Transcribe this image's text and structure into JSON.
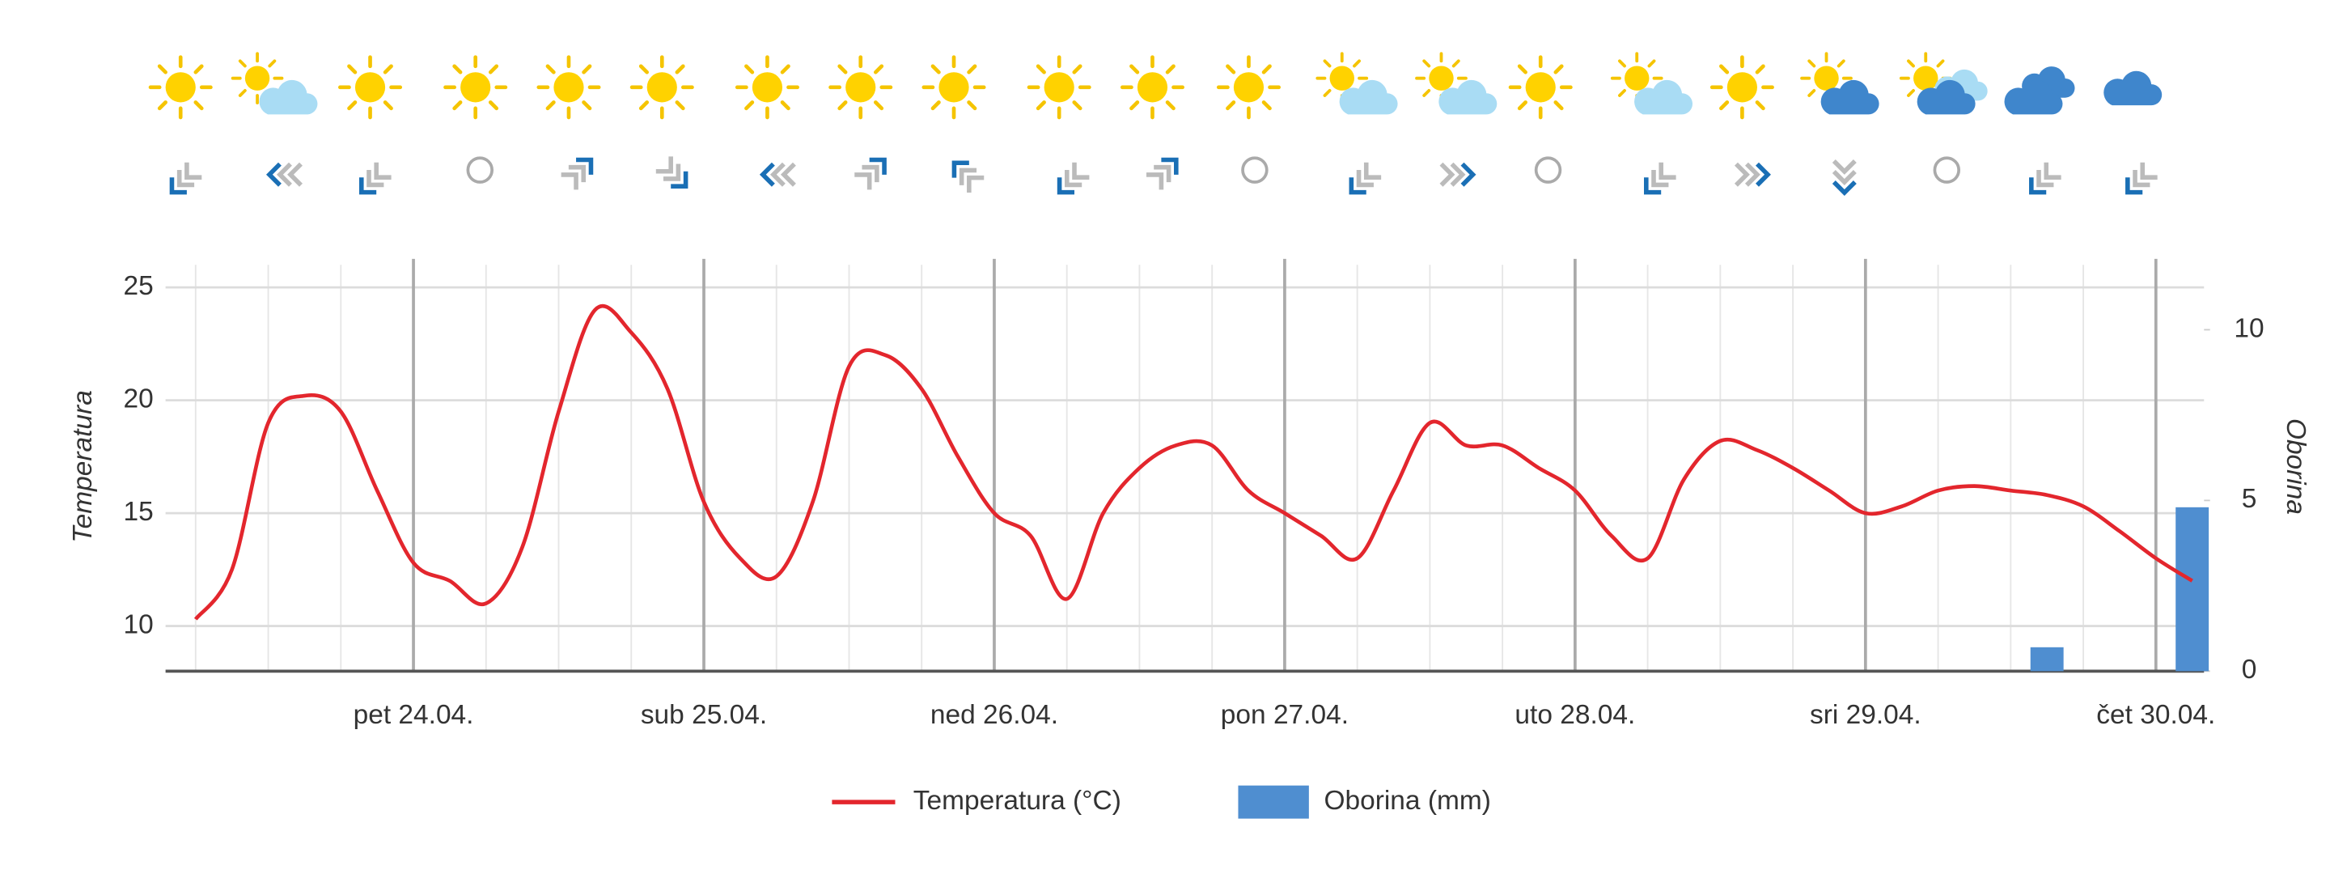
{
  "chart_data": {
    "type": "line",
    "categories": [
      null,
      null,
      null,
      null,
      null,
      null,
      "pet 24.04.",
      null,
      null,
      null,
      null,
      null,
      null,
      null,
      "sub 25.04.",
      null,
      null,
      null,
      null,
      null,
      null,
      null,
      "ned 26.04.",
      null,
      null,
      null,
      null,
      null,
      null,
      null,
      "pon 27.04.",
      null,
      null,
      null,
      null,
      null,
      null,
      null,
      "uto 28.04.",
      null,
      null,
      null,
      null,
      null,
      null,
      null,
      "sri 29.04.",
      null,
      null,
      null,
      null,
      null,
      null,
      null,
      "čet 30.04.",
      null
    ],
    "series": [
      {
        "name": "Temperatura (°C)",
        "type": "line",
        "color": "#e3262d",
        "values": [
          10.3,
          12.5,
          19,
          20.2,
          19.5,
          16,
          12.8,
          12,
          11,
          13.5,
          19.5,
          24,
          23,
          20.5,
          15.5,
          13,
          12.2,
          15.5,
          21.5,
          22,
          20.5,
          17.5,
          15,
          14,
          11.2,
          15,
          17,
          18,
          18,
          16,
          15,
          14,
          13,
          16,
          19,
          18,
          18,
          17,
          16,
          14,
          13,
          16.5,
          18.2,
          17.8,
          17,
          16,
          15,
          15.3,
          16,
          16.2,
          16,
          15.8,
          15.3,
          14.2,
          13,
          12
        ]
      },
      {
        "name": "Oborina (mm)",
        "type": "bar",
        "axis": "y2",
        "color": "#4f8ed0",
        "values": [
          0,
          0,
          0,
          0,
          0,
          0,
          0,
          0,
          0,
          0,
          0,
          0,
          0,
          0,
          0,
          0,
          0,
          0,
          0,
          0,
          0,
          0,
          0,
          0,
          0,
          0,
          0,
          0,
          0,
          0,
          0,
          0,
          0,
          0,
          0,
          0,
          0,
          0,
          0,
          0,
          0,
          0,
          0,
          0,
          0,
          0,
          0,
          0,
          0,
          0,
          0,
          0.7,
          0,
          0,
          0,
          4.8
        ]
      }
    ],
    "y_label": "Temperatura",
    "y2_label": "Oborina",
    "ylim": [
      8,
      26
    ],
    "yticks": [
      10,
      15,
      20,
      25
    ],
    "y2lim": [
      0,
      11.9
    ],
    "y2ticks": [
      0,
      5,
      10
    ],
    "grid": true,
    "legend": "bottom"
  }
}
